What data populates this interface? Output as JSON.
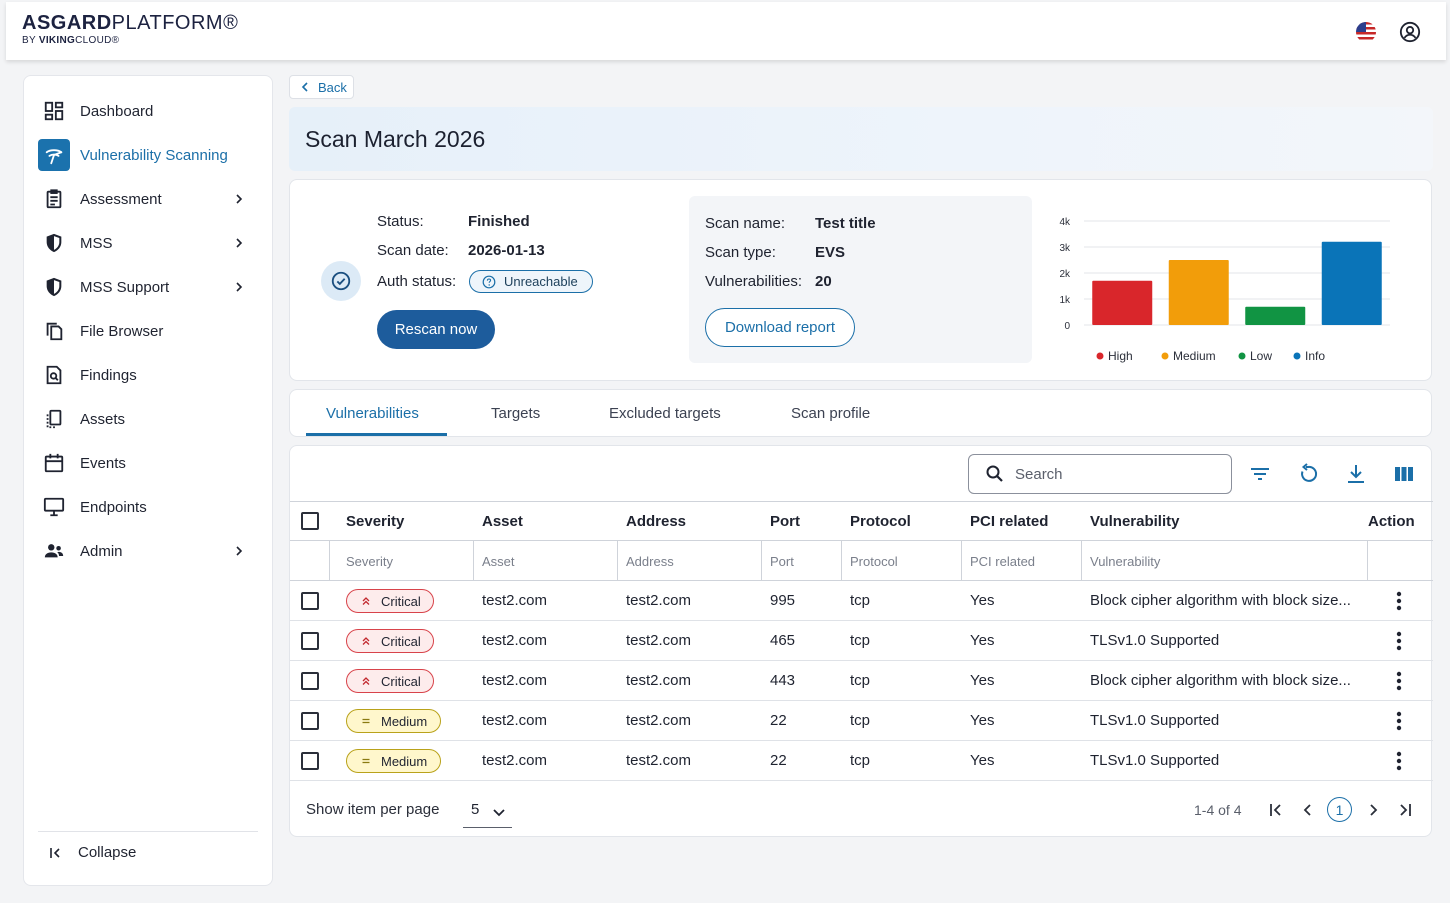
{
  "header": {
    "logo_bold": "ASGARD",
    "logo_light": "PLATFORM®",
    "logo_by": "BY",
    "logo_by_bold": "VIKING",
    "logo_by_light": "CLOUD®"
  },
  "sidebar": {
    "items": [
      {
        "label": "Dashboard",
        "icon": "dashboard-icon"
      },
      {
        "label": "Vulnerability Scanning",
        "icon": "radar-icon"
      },
      {
        "label": "Assessment",
        "icon": "clipboard-icon"
      },
      {
        "label": "MSS",
        "icon": "shield-icon"
      },
      {
        "label": "MSS Support",
        "icon": "shield-icon"
      },
      {
        "label": "File Browser",
        "icon": "files-icon"
      },
      {
        "label": "Findings",
        "icon": "document-search-icon"
      },
      {
        "label": "Assets",
        "icon": "assets-icon"
      },
      {
        "label": "Events",
        "icon": "calendar-icon"
      },
      {
        "label": "Endpoints",
        "icon": "monitor-icon"
      },
      {
        "label": "Admin",
        "icon": "users-icon"
      }
    ],
    "collapse_label": "Collapse"
  },
  "back_label": "Back",
  "page_title": "Scan March 2026",
  "summary": {
    "status_label": "Status:",
    "status_value": "Finished",
    "scan_date_label": "Scan date:",
    "scan_date_value": "2026-01-13",
    "auth_status_label": "Auth status:",
    "auth_status_value": "Unreachable",
    "rescan_label": "Rescan now",
    "scan_name_label": "Scan name:",
    "scan_name_value": "Test title",
    "scan_type_label": "Scan type:",
    "scan_type_value": "EVS",
    "vulns_label": "Vulnerabilities:",
    "vulns_value": "20",
    "download_label": "Download report"
  },
  "chart_data": {
    "type": "bar",
    "categories": [
      "High",
      "Medium",
      "Low",
      "Info"
    ],
    "values": [
      1700,
      2500,
      700,
      3200
    ],
    "colors": [
      "#d9262b",
      "#f29d0a",
      "#119443",
      "#0a74b8"
    ],
    "yticks": [
      "0",
      "1k",
      "2k",
      "3k",
      "4k"
    ],
    "ylim": [
      0,
      4000
    ],
    "legend": [
      "High",
      "Medium",
      "Low",
      "Info"
    ]
  },
  "tabs": [
    "Vulnerabilities",
    "Targets",
    "Excluded targets",
    "Scan profile"
  ],
  "toolbar": {
    "search_placeholder": "Search"
  },
  "table": {
    "columns": [
      "Severity",
      "Asset",
      "Address",
      "Port",
      "Protocol",
      "PCI related",
      "Vulnerability",
      "Action"
    ],
    "filters": [
      "Severity",
      "Asset",
      "Address",
      "Port",
      "Protocol",
      "PCI related",
      "Vulnerability"
    ],
    "rows": [
      {
        "severity": "Critical",
        "level": "crit",
        "asset": "test2.com",
        "address": "test2.com",
        "port": "995",
        "protocol": "tcp",
        "pci": "Yes",
        "vulnerability": "Block cipher algorithm with block size..."
      },
      {
        "severity": "Critical",
        "level": "crit",
        "asset": "test2.com",
        "address": "test2.com",
        "port": "465",
        "protocol": "tcp",
        "pci": "Yes",
        "vulnerability": "TLSv1.0 Supported"
      },
      {
        "severity": "Critical",
        "level": "crit",
        "asset": "test2.com",
        "address": "test2.com",
        "port": "443",
        "protocol": "tcp",
        "pci": "Yes",
        "vulnerability": "Block cipher algorithm with block size..."
      },
      {
        "severity": "Medium",
        "level": "med",
        "asset": "test2.com",
        "address": "test2.com",
        "port": "22",
        "protocol": "tcp",
        "pci": "Yes",
        "vulnerability": "TLSv1.0 Supported"
      },
      {
        "severity": "Medium",
        "level": "med",
        "asset": "test2.com",
        "address": "test2.com",
        "port": "22",
        "protocol": "tcp",
        "pci": "Yes",
        "vulnerability": "TLSv1.0 Supported"
      }
    ]
  },
  "pagination": {
    "per_page_label": "Show item per page",
    "per_page_value": "5",
    "range": "1-4 of 4",
    "current_page": "1"
  }
}
